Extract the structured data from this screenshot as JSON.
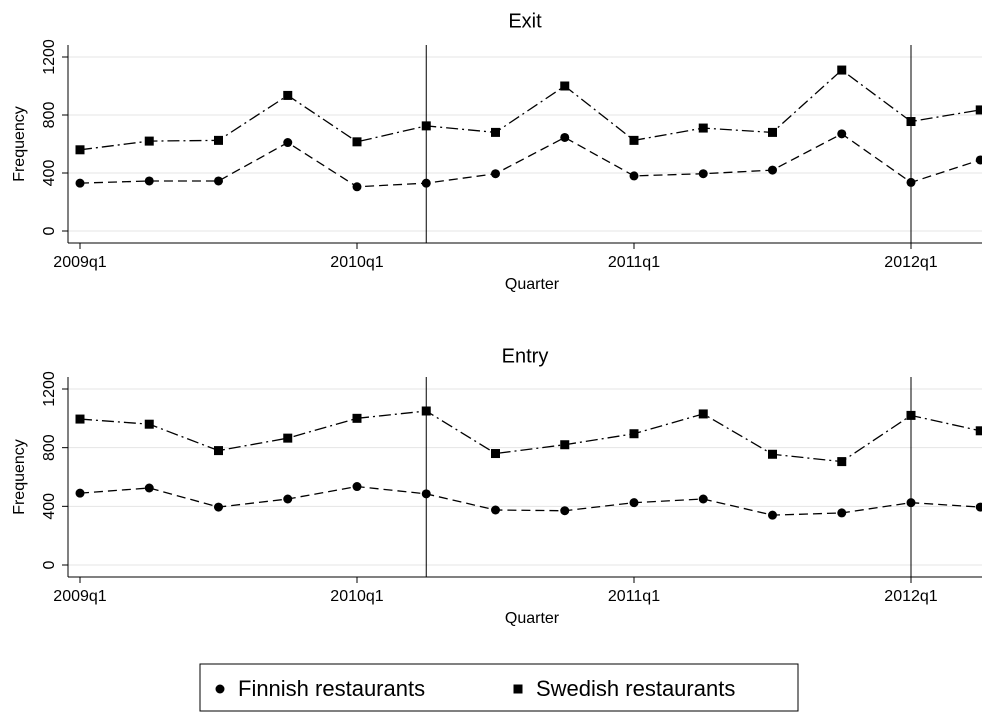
{
  "chart_data": [
    {
      "type": "line",
      "title": "Exit",
      "xlabel": "Quarter",
      "ylabel": "Frequency",
      "categories": [
        "2009q1",
        null,
        null,
        null,
        "2010q1",
        null,
        null,
        null,
        "2011q1",
        null,
        null,
        null,
        "2012q1",
        null
      ],
      "ylim": [
        0,
        1200
      ],
      "yticks": [
        0,
        400,
        800,
        1200
      ],
      "grid": true,
      "xlines": [
        5,
        12
      ],
      "series": [
        {
          "name": "Finnish restaurants",
          "color": "#000000",
          "marker": "circle",
          "dash": "dashed",
          "values": [
            330,
            345,
            345,
            610,
            305,
            330,
            395,
            645,
            380,
            395,
            420,
            670,
            335,
            490
          ]
        },
        {
          "name": "Swedish restaurants",
          "color": "#000000",
          "marker": "square",
          "dash": "dashdot",
          "values": [
            560,
            620,
            625,
            935,
            615,
            725,
            680,
            1000,
            625,
            710,
            680,
            1110,
            755,
            835
          ]
        }
      ]
    },
    {
      "type": "line",
      "title": "Entry",
      "xlabel": "Quarter",
      "ylabel": "Frequency",
      "categories": [
        "2009q1",
        null,
        null,
        null,
        "2010q1",
        null,
        null,
        null,
        "2011q1",
        null,
        null,
        null,
        "2012q1",
        null
      ],
      "ylim": [
        0,
        1200
      ],
      "yticks": [
        0,
        400,
        800,
        1200
      ],
      "grid": true,
      "xlines": [
        5,
        12
      ],
      "series": [
        {
          "name": "Finnish restaurants",
          "color": "#000000",
          "marker": "circle",
          "dash": "dashed",
          "values": [
            490,
            525,
            395,
            450,
            535,
            485,
            375,
            370,
            425,
            450,
            340,
            355,
            425,
            395
          ]
        },
        {
          "name": "Swedish restaurants",
          "color": "#000000",
          "marker": "square",
          "dash": "dashdot",
          "values": [
            995,
            960,
            780,
            865,
            1000,
            1050,
            760,
            820,
            895,
            1030,
            755,
            705,
            1020,
            915
          ]
        }
      ]
    }
  ]
}
